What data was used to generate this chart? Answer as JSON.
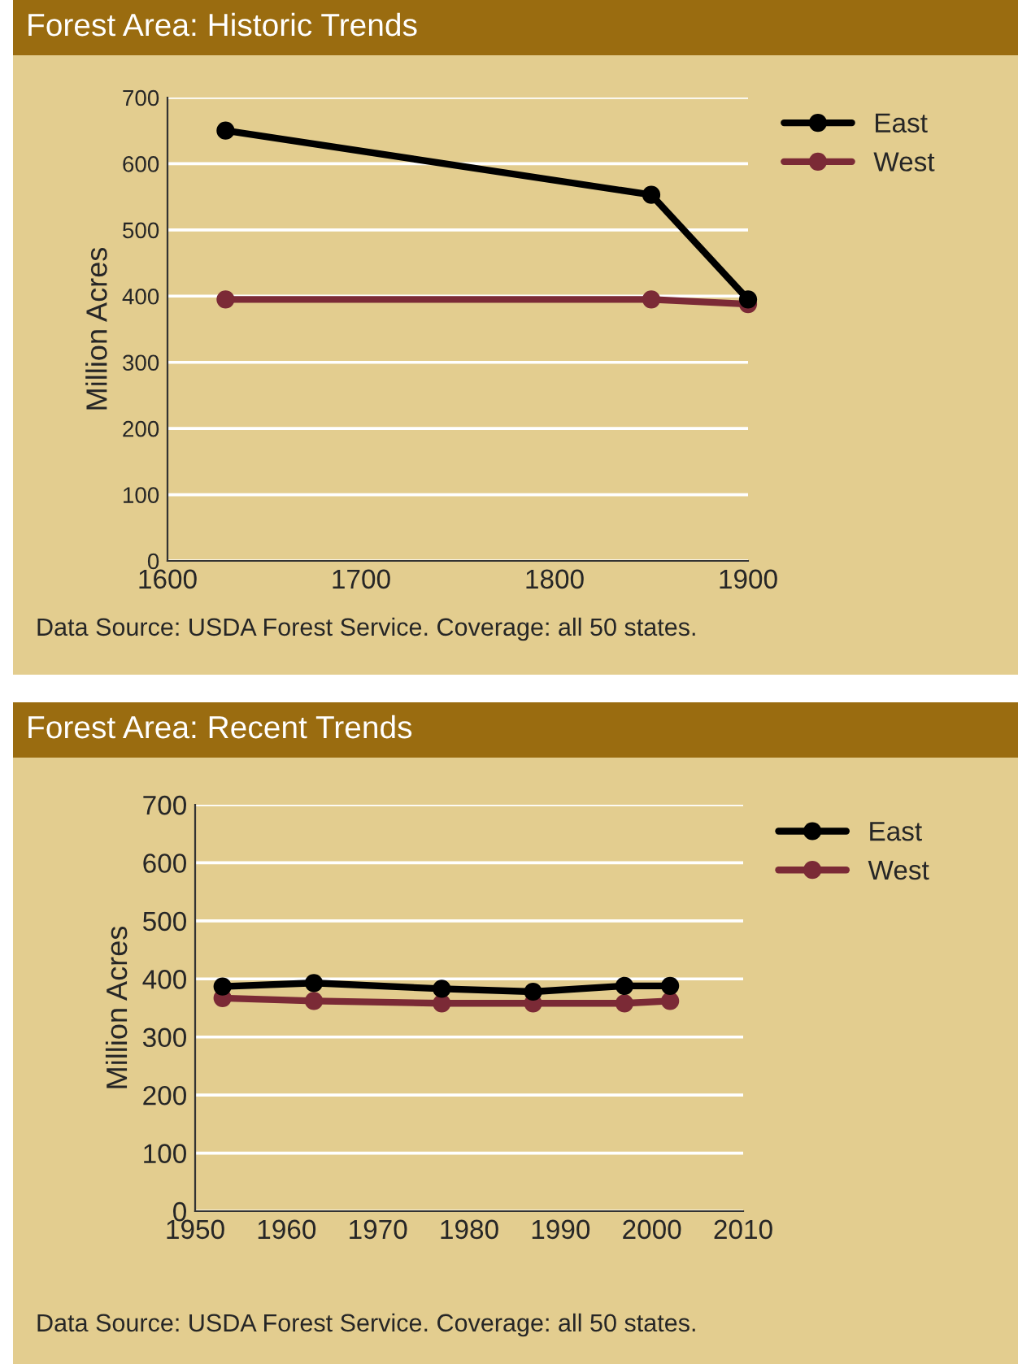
{
  "chart_data": [
    {
      "type": "line",
      "title": "Forest Area: Historic Trends",
      "ylabel": "Million Acres",
      "x": [
        1630,
        1850,
        1900
      ],
      "series": [
        {
          "name": "East",
          "color": "#000000",
          "values": [
            650,
            553,
            395
          ]
        },
        {
          "name": "West",
          "color": "#7b2a36",
          "values": [
            395,
            395,
            388
          ]
        }
      ],
      "xlim": [
        1600,
        1900
      ],
      "xticks": [
        1600,
        1700,
        1800,
        1900
      ],
      "ylim": [
        0,
        700
      ],
      "yticks": [
        0,
        100,
        200,
        300,
        400,
        500,
        600,
        700
      ],
      "grid": "y",
      "legend": "top right",
      "marker": "circle",
      "line_style": "solid",
      "annotations": [
        "Data Source: USDA Forest Service. Coverage: all 50 states."
      ]
    },
    {
      "type": "line",
      "title": "Forest Area: Recent Trends",
      "ylabel": "Million Acres",
      "x": [
        1953,
        1963,
        1977,
        1987,
        1997,
        2002
      ],
      "series": [
        {
          "name": "East",
          "color": "#000000",
          "values": [
            387,
            393,
            383,
            378,
            388,
            388
          ]
        },
        {
          "name": "West",
          "color": "#7b2a36",
          "values": [
            367,
            362,
            358,
            358,
            358,
            362
          ]
        }
      ],
      "xlim": [
        1950,
        2010
      ],
      "xticks": [
        1950,
        1960,
        1970,
        1980,
        1990,
        2000,
        2010
      ],
      "ylim": [
        0,
        700
      ],
      "yticks": [
        0,
        100,
        200,
        300,
        400,
        500,
        600,
        700
      ],
      "grid": "y",
      "legend": "top right",
      "marker": "circle",
      "line_style": "solid",
      "annotations": [
        "Data Source: USDA Forest Service. Coverage: all 50 states."
      ]
    }
  ]
}
